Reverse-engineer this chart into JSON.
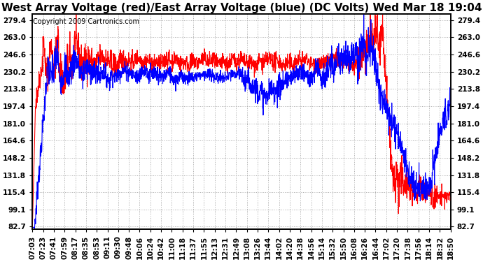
{
  "title": "West Array Voltage (red)/East Array Voltage (blue) (DC Volts) Wed Mar 18 19:04",
  "copyright": "Copyright 2009 Cartronics.com",
  "ylabel_values": [
    82.7,
    99.1,
    115.4,
    131.8,
    148.2,
    164.6,
    181.0,
    197.4,
    213.8,
    230.2,
    246.6,
    263.0,
    279.4
  ],
  "ylim": [
    80,
    285
  ],
  "red_color": "#FF0000",
  "blue_color": "#0000FF",
  "bg_color": "#FFFFFF",
  "grid_color": "#AAAAAA",
  "xtick_labels": [
    "07:03",
    "07:23",
    "07:41",
    "07:59",
    "08:17",
    "08:35",
    "08:53",
    "09:11",
    "09:30",
    "09:48",
    "10:06",
    "10:24",
    "10:42",
    "11:00",
    "11:18",
    "11:37",
    "11:55",
    "12:13",
    "12:31",
    "12:49",
    "13:08",
    "13:26",
    "13:44",
    "14:02",
    "14:20",
    "14:38",
    "14:56",
    "15:14",
    "15:32",
    "15:50",
    "16:08",
    "16:26",
    "16:44",
    "17:02",
    "17:20",
    "17:38",
    "17:56",
    "18:14",
    "18:32",
    "18:50"
  ],
  "title_fontsize": 11,
  "copyright_fontsize": 7,
  "tick_fontsize": 7.5
}
